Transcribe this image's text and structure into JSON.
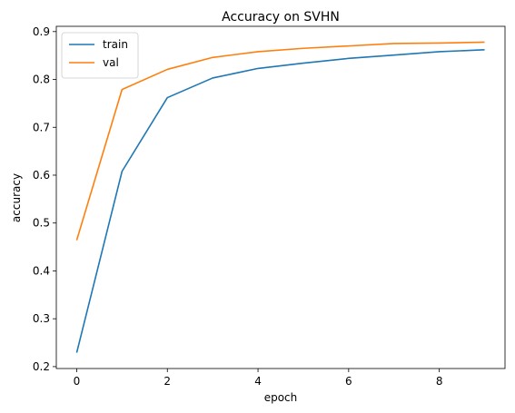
{
  "chart_data": {
    "type": "line",
    "title": "Accuracy on SVHN",
    "xlabel": "epoch",
    "ylabel": "accuracy",
    "x": [
      0,
      1,
      2,
      3,
      4,
      5,
      6,
      7,
      8,
      9
    ],
    "series": [
      {
        "name": "train",
        "color": "#1f77b4",
        "values": [
          0.229,
          0.608,
          0.762,
          0.803,
          0.823,
          0.834,
          0.844,
          0.851,
          0.858,
          0.862
        ]
      },
      {
        "name": "val",
        "color": "#ff7f0e",
        "values": [
          0.464,
          0.779,
          0.821,
          0.846,
          0.858,
          0.865,
          0.87,
          0.875,
          0.876,
          0.878
        ]
      }
    ],
    "xlim": [
      -0.45,
      9.45
    ],
    "ylim": [
      0.196,
      0.911
    ],
    "xticks": [
      0,
      2,
      4,
      6,
      8
    ],
    "yticks": [
      0.2,
      0.3,
      0.4,
      0.5,
      0.6,
      0.7,
      0.8,
      0.9
    ],
    "xtick_labels": [
      "0",
      "2",
      "4",
      "6",
      "8"
    ],
    "ytick_labels": [
      "0.2",
      "0.3",
      "0.4",
      "0.5",
      "0.6",
      "0.7",
      "0.8",
      "0.9"
    ],
    "grid": false,
    "legend_position": "top-left"
  }
}
